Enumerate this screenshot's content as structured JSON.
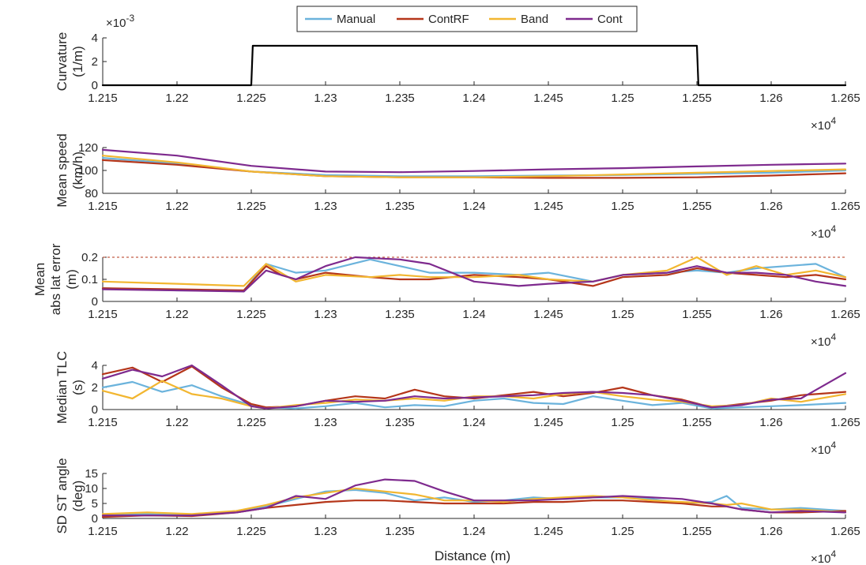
{
  "figure": {
    "xlabel": "Distance (m)",
    "legend": {
      "placement": "top-center",
      "entries": [
        {
          "name": "Manual",
          "color": "#6bb3dc"
        },
        {
          "name": "ContRF",
          "color": "#b5361a"
        },
        {
          "name": "Band",
          "color": "#f2b630"
        },
        {
          "name": "Cont",
          "color": "#7e2a8e"
        }
      ]
    }
  },
  "chart_data": [
    {
      "type": "line",
      "ylabel": [
        "Curvature",
        "(1/m)"
      ],
      "y_multiplier_label": "×10",
      "y_multiplier_exp": "-3",
      "x_multiplier_label": "×10",
      "x_multiplier_exp": "4",
      "xlim": [
        1.215,
        1.265
      ],
      "ylim": [
        0,
        4
      ],
      "x_ticks": [
        1.215,
        1.22,
        1.225,
        1.23,
        1.235,
        1.24,
        1.245,
        1.25,
        1.255,
        1.26,
        1.265
      ],
      "x_tick_labels": [
        "1.215",
        "1.22",
        "1.225",
        "1.23",
        "1.235",
        "1.24",
        "1.245",
        "1.25",
        "1.255",
        "1.26",
        "1.265"
      ],
      "y_ticks": [
        0,
        2,
        4
      ],
      "y_tick_labels": [
        "0",
        "2",
        "4"
      ],
      "series": [
        {
          "color": "#000000",
          "x": [
            1.215,
            1.225,
            1.2251,
            1.255,
            1.2551,
            1.265
          ],
          "y": [
            0,
            0,
            3.33,
            3.33,
            0,
            0
          ]
        }
      ]
    },
    {
      "type": "line",
      "ylabel": [
        "Mean speed",
        "(km/h)"
      ],
      "x_multiplier_label": "×10",
      "x_multiplier_exp": "4",
      "xlim": [
        1.215,
        1.265
      ],
      "ylim": [
        80,
        120
      ],
      "x_ticks": [
        1.215,
        1.22,
        1.225,
        1.23,
        1.235,
        1.24,
        1.245,
        1.25,
        1.255,
        1.26,
        1.265
      ],
      "x_tick_labels": [
        "1.215",
        "1.22",
        "1.225",
        "1.23",
        "1.235",
        "1.24",
        "1.245",
        "1.25",
        "1.255",
        "1.26",
        "1.265"
      ],
      "y_ticks": [
        80,
        100,
        120
      ],
      "y_tick_labels": [
        "80",
        "100",
        "120"
      ],
      "series": [
        {
          "name": "Manual",
          "color": "#6bb3dc",
          "x": [
            1.215,
            1.22,
            1.225,
            1.23,
            1.235,
            1.24,
            1.245,
            1.25,
            1.255,
            1.26,
            1.265
          ],
          "y": [
            111,
            106,
            99,
            96,
            95,
            95,
            95.5,
            96,
            97,
            98,
            100
          ]
        },
        {
          "name": "ContRF",
          "color": "#b5361a",
          "x": [
            1.215,
            1.22,
            1.225,
            1.23,
            1.235,
            1.24,
            1.245,
            1.25,
            1.255,
            1.26,
            1.265
          ],
          "y": [
            109,
            105,
            99,
            95,
            94,
            94,
            93.5,
            93.5,
            94,
            95.5,
            97.5
          ]
        },
        {
          "name": "Band",
          "color": "#f2b630",
          "x": [
            1.215,
            1.22,
            1.225,
            1.23,
            1.235,
            1.24,
            1.245,
            1.25,
            1.255,
            1.26,
            1.265
          ],
          "y": [
            113,
            107,
            99,
            95,
            94,
            94,
            95,
            96.5,
            98,
            99.5,
            101
          ]
        },
        {
          "name": "Cont",
          "color": "#7e2a8e",
          "x": [
            1.215,
            1.22,
            1.225,
            1.23,
            1.235,
            1.24,
            1.245,
            1.25,
            1.255,
            1.26,
            1.265
          ],
          "y": [
            118,
            113,
            104,
            99,
            98.5,
            99.5,
            101,
            102,
            103.5,
            105,
            106
          ]
        }
      ]
    },
    {
      "type": "line",
      "ylabel": [
        "Mean",
        "abs lat error",
        "(m)"
      ],
      "x_multiplier_label": "×10",
      "x_multiplier_exp": "4",
      "xlim": [
        1.215,
        1.265
      ],
      "ylim": [
        0,
        0.2
      ],
      "x_ticks": [
        1.215,
        1.22,
        1.225,
        1.23,
        1.235,
        1.24,
        1.245,
        1.25,
        1.255,
        1.26,
        1.265
      ],
      "x_tick_labels": [
        "1.215",
        "1.22",
        "1.225",
        "1.23",
        "1.235",
        "1.24",
        "1.245",
        "1.25",
        "1.255",
        "1.26",
        "1.265"
      ],
      "y_ticks": [
        0,
        0.1,
        0.2
      ],
      "y_tick_labels": [
        "0",
        "0.1",
        "0.2"
      ],
      "reference_line": {
        "y": 0.2,
        "color": "#b5361a"
      },
      "series": [
        {
          "name": "Manual",
          "color": "#6bb3dc",
          "x": [
            1.215,
            1.22,
            1.2245,
            1.226,
            1.227,
            1.228,
            1.23,
            1.233,
            1.235,
            1.237,
            1.24,
            1.243,
            1.245,
            1.248,
            1.25,
            1.253,
            1.255,
            1.257,
            1.259,
            1.261,
            1.263,
            1.265
          ],
          "y": [
            0.06,
            0.05,
            0.05,
            0.17,
            0.15,
            0.13,
            0.14,
            0.19,
            0.16,
            0.13,
            0.13,
            0.12,
            0.13,
            0.09,
            0.12,
            0.13,
            0.14,
            0.13,
            0.15,
            0.16,
            0.17,
            0.11
          ]
        },
        {
          "name": "ContRF",
          "color": "#b5361a",
          "x": [
            1.215,
            1.22,
            1.2245,
            1.226,
            1.227,
            1.228,
            1.23,
            1.233,
            1.235,
            1.237,
            1.24,
            1.243,
            1.245,
            1.248,
            1.25,
            1.253,
            1.255,
            1.257,
            1.259,
            1.261,
            1.263,
            1.265
          ],
          "y": [
            0.06,
            0.055,
            0.05,
            0.16,
            0.12,
            0.1,
            0.13,
            0.11,
            0.1,
            0.1,
            0.12,
            0.11,
            0.1,
            0.07,
            0.11,
            0.12,
            0.15,
            0.13,
            0.12,
            0.11,
            0.12,
            0.1
          ]
        },
        {
          "name": "Band",
          "color": "#f2b630",
          "x": [
            1.215,
            1.22,
            1.2245,
            1.226,
            1.227,
            1.228,
            1.23,
            1.233,
            1.235,
            1.237,
            1.24,
            1.243,
            1.245,
            1.248,
            1.25,
            1.253,
            1.255,
            1.257,
            1.259,
            1.261,
            1.263,
            1.265
          ],
          "y": [
            0.09,
            0.08,
            0.07,
            0.17,
            0.13,
            0.09,
            0.12,
            0.11,
            0.12,
            0.11,
            0.11,
            0.12,
            0.1,
            0.09,
            0.12,
            0.14,
            0.2,
            0.12,
            0.16,
            0.12,
            0.14,
            0.11
          ]
        },
        {
          "name": "Cont",
          "color": "#7e2a8e",
          "x": [
            1.215,
            1.22,
            1.2245,
            1.226,
            1.227,
            1.228,
            1.23,
            1.232,
            1.235,
            1.237,
            1.24,
            1.243,
            1.245,
            1.248,
            1.25,
            1.253,
            1.255,
            1.257,
            1.259,
            1.261,
            1.263,
            1.265
          ],
          "y": [
            0.055,
            0.05,
            0.045,
            0.14,
            0.12,
            0.1,
            0.16,
            0.2,
            0.19,
            0.17,
            0.09,
            0.07,
            0.08,
            0.09,
            0.12,
            0.13,
            0.16,
            0.13,
            0.13,
            0.12,
            0.09,
            0.07
          ]
        }
      ]
    },
    {
      "type": "line",
      "ylabel": [
        "Median TLC",
        "(s)"
      ],
      "x_multiplier_label": "×10",
      "x_multiplier_exp": "4",
      "xlim": [
        1.215,
        1.265
      ],
      "ylim": [
        0,
        4
      ],
      "x_ticks": [
        1.215,
        1.22,
        1.225,
        1.23,
        1.235,
        1.24,
        1.245,
        1.25,
        1.255,
        1.26,
        1.265
      ],
      "x_tick_labels": [
        "1.215",
        "1.22",
        "1.225",
        "1.23",
        "1.235",
        "1.24",
        "1.245",
        "1.25",
        "1.255",
        "1.26",
        "1.265"
      ],
      "y_ticks": [
        0,
        2,
        4
      ],
      "y_tick_labels": [
        "0",
        "2",
        "4"
      ],
      "series": [
        {
          "name": "Manual",
          "color": "#6bb3dc",
          "x": [
            1.215,
            1.217,
            1.219,
            1.221,
            1.223,
            1.225,
            1.226,
            1.228,
            1.23,
            1.232,
            1.234,
            1.236,
            1.238,
            1.24,
            1.242,
            1.244,
            1.246,
            1.248,
            1.25,
            1.252,
            1.254,
            1.256,
            1.258,
            1.26,
            1.262,
            1.265
          ],
          "y": [
            2.0,
            2.5,
            1.6,
            2.2,
            1.2,
            0.4,
            0.2,
            0.1,
            0.3,
            0.6,
            0.2,
            0.4,
            0.3,
            0.8,
            1.0,
            0.6,
            0.5,
            1.2,
            0.8,
            0.4,
            0.6,
            0.1,
            0.2,
            0.3,
            0.4,
            0.6
          ]
        },
        {
          "name": "ContRF",
          "color": "#b5361a",
          "x": [
            1.215,
            1.217,
            1.219,
            1.221,
            1.223,
            1.225,
            1.226,
            1.228,
            1.23,
            1.232,
            1.234,
            1.236,
            1.238,
            1.24,
            1.242,
            1.244,
            1.246,
            1.248,
            1.25,
            1.252,
            1.254,
            1.256,
            1.258,
            1.26,
            1.262,
            1.265
          ],
          "y": [
            3.2,
            3.8,
            2.5,
            3.9,
            2.0,
            0.5,
            0.2,
            0.3,
            0.8,
            1.2,
            1.0,
            1.8,
            1.2,
            1.0,
            1.3,
            1.6,
            1.2,
            1.5,
            2.0,
            1.3,
            0.9,
            0.2,
            0.5,
            0.8,
            1.3,
            1.6
          ]
        },
        {
          "name": "Band",
          "color": "#f2b630",
          "x": [
            1.215,
            1.217,
            1.219,
            1.221,
            1.223,
            1.225,
            1.226,
            1.228,
            1.23,
            1.232,
            1.234,
            1.236,
            1.238,
            1.24,
            1.242,
            1.244,
            1.246,
            1.248,
            1.25,
            1.252,
            1.254,
            1.256,
            1.258,
            1.26,
            1.262,
            1.265
          ],
          "y": [
            1.7,
            1.0,
            2.6,
            1.4,
            1.0,
            0.3,
            0.1,
            0.4,
            0.6,
            0.9,
            0.8,
            1.0,
            0.8,
            1.2,
            1.2,
            1.0,
            1.4,
            1.6,
            1.2,
            0.9,
            0.7,
            0.3,
            0.4,
            1.0,
            0.7,
            1.4
          ]
        },
        {
          "name": "Cont",
          "color": "#7e2a8e",
          "x": [
            1.215,
            1.217,
            1.219,
            1.221,
            1.223,
            1.225,
            1.226,
            1.228,
            1.23,
            1.232,
            1.234,
            1.236,
            1.238,
            1.24,
            1.242,
            1.244,
            1.246,
            1.248,
            1.25,
            1.252,
            1.254,
            1.256,
            1.258,
            1.26,
            1.262,
            1.265
          ],
          "y": [
            2.8,
            3.6,
            3.0,
            4.0,
            2.2,
            0.3,
            0.1,
            0.3,
            0.8,
            0.7,
            0.8,
            1.2,
            1.0,
            1.1,
            1.2,
            1.3,
            1.5,
            1.6,
            1.5,
            1.3,
            0.8,
            0.2,
            0.4,
            0.9,
            1.0,
            3.3
          ]
        }
      ]
    },
    {
      "type": "line",
      "ylabel": [
        "SD ST angle",
        "(deg)"
      ],
      "x_multiplier_label": "×10",
      "x_multiplier_exp": "4",
      "xlim": [
        1.215,
        1.265
      ],
      "ylim": [
        0,
        15
      ],
      "x_ticks": [
        1.215,
        1.22,
        1.225,
        1.23,
        1.235,
        1.24,
        1.245,
        1.25,
        1.255,
        1.26,
        1.265
      ],
      "x_tick_labels": [
        "1.215",
        "1.22",
        "1.225",
        "1.23",
        "1.235",
        "1.24",
        "1.245",
        "1.25",
        "1.255",
        "1.26",
        "1.265"
      ],
      "y_ticks": [
        0,
        5,
        10,
        15
      ],
      "y_tick_labels": [
        "0",
        "5",
        "10",
        "15"
      ],
      "series": [
        {
          "name": "Manual",
          "color": "#6bb3dc",
          "x": [
            1.215,
            1.218,
            1.221,
            1.224,
            1.226,
            1.228,
            1.23,
            1.232,
            1.234,
            1.236,
            1.238,
            1.24,
            1.242,
            1.244,
            1.246,
            1.248,
            1.25,
            1.252,
            1.254,
            1.256,
            1.257,
            1.258,
            1.26,
            1.262,
            1.265
          ],
          "y": [
            1.0,
            1.5,
            1.0,
            2.5,
            4.0,
            6.5,
            9.0,
            9.5,
            8.5,
            6.0,
            7.0,
            5.5,
            6.0,
            7.0,
            6.5,
            7.0,
            7.0,
            6.5,
            5.0,
            5.5,
            7.5,
            3.5,
            3.0,
            3.5,
            2.5
          ]
        },
        {
          "name": "ContRF",
          "color": "#b5361a",
          "x": [
            1.215,
            1.218,
            1.221,
            1.224,
            1.226,
            1.228,
            1.23,
            1.232,
            1.234,
            1.236,
            1.238,
            1.24,
            1.242,
            1.244,
            1.246,
            1.248,
            1.25,
            1.252,
            1.254,
            1.256,
            1.257,
            1.258,
            1.26,
            1.262,
            1.265
          ],
          "y": [
            0.5,
            1.0,
            0.8,
            2.0,
            3.5,
            4.5,
            5.5,
            6.0,
            6.0,
            5.5,
            5.0,
            5.0,
            5.0,
            5.5,
            5.5,
            6.0,
            6.0,
            5.5,
            5.0,
            4.0,
            4.0,
            3.0,
            2.0,
            2.0,
            2.5
          ]
        },
        {
          "name": "Band",
          "color": "#f2b630",
          "x": [
            1.215,
            1.218,
            1.221,
            1.224,
            1.226,
            1.228,
            1.23,
            1.232,
            1.234,
            1.236,
            1.238,
            1.24,
            1.242,
            1.244,
            1.246,
            1.248,
            1.25,
            1.252,
            1.254,
            1.256,
            1.257,
            1.258,
            1.26,
            1.262,
            1.265
          ],
          "y": [
            1.5,
            2.0,
            1.5,
            2.5,
            4.5,
            7.0,
            8.5,
            10.0,
            9.0,
            8.0,
            6.0,
            6.0,
            5.5,
            6.5,
            7.0,
            7.5,
            7.0,
            6.0,
            5.5,
            5.0,
            4.5,
            5.0,
            3.0,
            3.0,
            2.0
          ]
        },
        {
          "name": "Cont",
          "color": "#7e2a8e",
          "x": [
            1.215,
            1.218,
            1.221,
            1.224,
            1.226,
            1.228,
            1.23,
            1.232,
            1.234,
            1.236,
            1.238,
            1.24,
            1.242,
            1.244,
            1.246,
            1.248,
            1.25,
            1.252,
            1.254,
            1.256,
            1.257,
            1.258,
            1.26,
            1.262,
            1.265
          ],
          "y": [
            1.0,
            1.0,
            1.0,
            2.0,
            3.5,
            7.5,
            6.5,
            11.0,
            13.0,
            12.5,
            9.0,
            6.0,
            6.0,
            6.0,
            6.5,
            7.0,
            7.5,
            7.0,
            6.5,
            5.0,
            4.0,
            3.0,
            2.0,
            2.5,
            2.0
          ]
        }
      ]
    }
  ]
}
